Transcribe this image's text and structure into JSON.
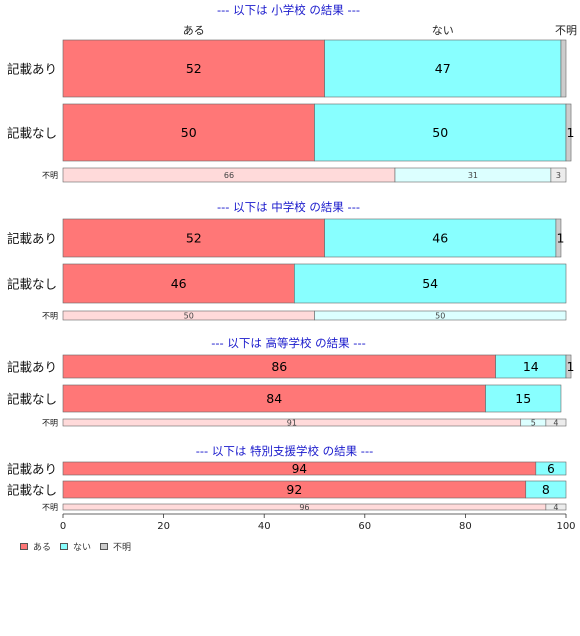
{
  "chart_data": {
    "type": "bar",
    "orientation": "horizontal",
    "stacked": true,
    "xlim": [
      0,
      100
    ],
    "x_ticks": [
      0,
      20,
      40,
      60,
      80,
      100
    ],
    "column_headers": [
      "ある",
      "ない",
      "不明"
    ],
    "categories": [
      "ある",
      "ない",
      "不明"
    ],
    "colors": {
      "ある": "#ff7777",
      "ない": "#88ffff",
      "不明": "#cccccc",
      "ある_light": "#ffdada",
      "ない_light": "#dcffff",
      "不明_light": "#ececec"
    },
    "legend": {
      "position": "bottom-left",
      "items": [
        {
          "label": "ある",
          "color": "#ff7777"
        },
        {
          "label": "ない",
          "color": "#88ffff"
        },
        {
          "label": "不明",
          "color": "#cccccc"
        }
      ]
    },
    "groups": [
      {
        "title": "--- 以下は 小学校 の結果 ---",
        "rows": [
          {
            "label": "記載あり",
            "values": [
              52,
              47,
              1
            ],
            "labels": [
              "52",
              "47",
              ""
            ]
          },
          {
            "label": "記載なし",
            "values": [
              50,
              50,
              1
            ],
            "labels": [
              "50",
              "50",
              "1"
            ]
          },
          {
            "label": "不明",
            "values": [
              66,
              31,
              3
            ],
            "labels": [
              "66",
              "31",
              "3"
            ],
            "minor": true
          }
        ]
      },
      {
        "title": "--- 以下は 中学校 の結果 ---",
        "rows": [
          {
            "label": "記載あり",
            "values": [
              52,
              46,
              1
            ],
            "labels": [
              "52",
              "46",
              "1"
            ]
          },
          {
            "label": "記載なし",
            "values": [
              46,
              54,
              0
            ],
            "labels": [
              "46",
              "54",
              ""
            ]
          },
          {
            "label": "不明",
            "values": [
              50,
              50,
              0
            ],
            "labels": [
              "50",
              "50",
              ""
            ],
            "minor": true
          }
        ]
      },
      {
        "title": "--- 以下は 高等学校 の結果 ---",
        "rows": [
          {
            "label": "記載あり",
            "values": [
              86,
              14,
              1
            ],
            "labels": [
              "86",
              "14",
              "1"
            ]
          },
          {
            "label": "記載なし",
            "values": [
              84,
              15,
              0
            ],
            "labels": [
              "84",
              "15",
              ""
            ]
          },
          {
            "label": "不明",
            "values": [
              91,
              5,
              4
            ],
            "labels": [
              "91",
              "5",
              "4"
            ],
            "minor": true
          }
        ]
      },
      {
        "title": "--- 以下は 特別支援学校 の結果 ---",
        "rows": [
          {
            "label": "記載あり",
            "values": [
              94,
              6,
              0
            ],
            "labels": [
              "94",
              "6",
              ""
            ]
          },
          {
            "label": "記載なし",
            "values": [
              92,
              8,
              0
            ],
            "labels": [
              "92",
              "8",
              ""
            ]
          },
          {
            "label": "不明",
            "values": [
              96,
              0,
              4
            ],
            "labels": [
              "96",
              "",
              "4"
            ],
            "minor": true
          }
        ]
      }
    ]
  }
}
